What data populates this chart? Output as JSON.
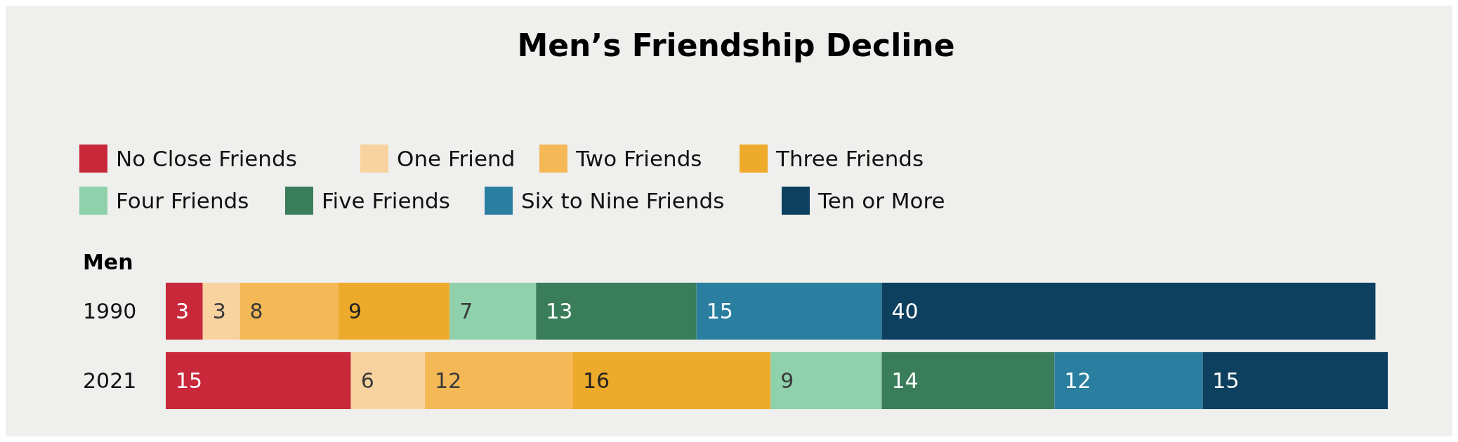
{
  "chart_data": {
    "type": "bar",
    "title": "Men’s Friendship Decline",
    "ylabel": "Men",
    "orientation": "horizontal",
    "stacked": true,
    "data_labels": true,
    "legend": "top left",
    "categories": [
      "1990",
      "2021"
    ],
    "series": [
      {
        "name": "No Close Friends",
        "color": "#c8283a",
        "values": [
          3,
          15
        ]
      },
      {
        "name": "One Friend",
        "color": "#f8d3a0",
        "values": [
          3,
          6
        ]
      },
      {
        "name": "Two Friends",
        "color": "#f5b856",
        "values": [
          8,
          12
        ]
      },
      {
        "name": "Three Friends",
        "color": "#eeaa2a",
        "values": [
          9,
          16
        ]
      },
      {
        "name": "Four Friends",
        "color": "#8fd1ab",
        "values": [
          7,
          9
        ]
      },
      {
        "name": "Five Friends",
        "color": "#3a7d5a",
        "values": [
          13,
          14
        ]
      },
      {
        "name": "Six to Nine Friends",
        "color": "#2a7ea0",
        "values": [
          15,
          12
        ]
      },
      {
        "name": "Ten or More",
        "color": "#0d3f5e",
        "values": [
          40,
          15
        ]
      }
    ]
  }
}
